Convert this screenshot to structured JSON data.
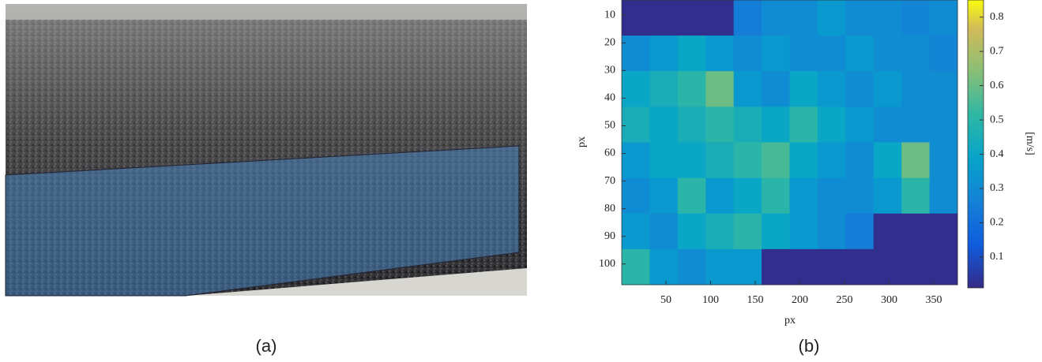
{
  "chart_data": {
    "type": "heatmap",
    "xlabel": "px",
    "ylabel": "px",
    "colorbar_label": "[m/s]",
    "xlim": [
      0.5,
      376.5
    ],
    "ylim": [
      107.5,
      4.5
    ],
    "xticks": [
      50,
      100,
      150,
      200,
      250,
      300,
      350
    ],
    "yticks": [
      10,
      20,
      30,
      40,
      50,
      60,
      70,
      80,
      90,
      100
    ],
    "clim": [
      0.01,
      0.85
    ],
    "cticks": [
      0.1,
      0.2,
      0.3,
      0.4,
      0.5,
      0.6,
      0.7,
      0.8
    ],
    "colormap": "parula",
    "values": [
      [
        0.02,
        0.02,
        0.02,
        0.02,
        0.25,
        0.3,
        0.3,
        0.35,
        0.3,
        0.3,
        0.28,
        0.3
      ],
      [
        0.3,
        0.35,
        0.4,
        0.35,
        0.3,
        0.35,
        0.3,
        0.3,
        0.35,
        0.3,
        0.3,
        0.28
      ],
      [
        0.4,
        0.45,
        0.5,
        0.6,
        0.35,
        0.3,
        0.4,
        0.35,
        0.3,
        0.35,
        0.3,
        0.3
      ],
      [
        0.45,
        0.4,
        0.45,
        0.5,
        0.45,
        0.4,
        0.5,
        0.4,
        0.35,
        0.3,
        0.3,
        0.3
      ],
      [
        0.35,
        0.4,
        0.4,
        0.45,
        0.5,
        0.55,
        0.4,
        0.35,
        0.3,
        0.4,
        0.6,
        0.3
      ],
      [
        0.3,
        0.35,
        0.5,
        0.35,
        0.4,
        0.5,
        0.35,
        0.3,
        0.3,
        0.35,
        0.5,
        0.3
      ],
      [
        0.35,
        0.3,
        0.4,
        0.45,
        0.5,
        0.4,
        0.35,
        0.3,
        0.25,
        0.02,
        0.02,
        0.02
      ],
      [
        0.5,
        0.35,
        0.3,
        0.35,
        0.35,
        0.02,
        0.02,
        0.02,
        0.02,
        0.02,
        0.02,
        0.02
      ]
    ]
  },
  "captions": [
    "(a)",
    "(b)"
  ]
}
